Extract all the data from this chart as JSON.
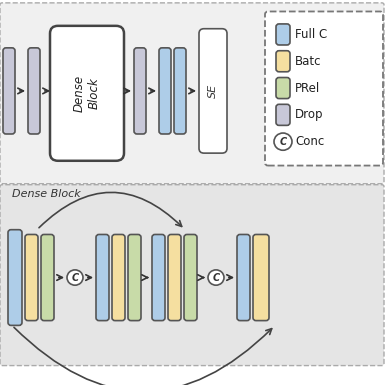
{
  "bg_color": "#ffffff",
  "top_bg": "#f5f5f5",
  "bottom_bg": "#e8e8e8",
  "colors": {
    "blue": "#aecde8",
    "yellow": "#f5dfa0",
    "green": "#c8dba8",
    "gray": "#c8c8d8",
    "white": "#ffffff"
  },
  "legend_items": [
    {
      "color": "#aecde8",
      "label": "Full C"
    },
    {
      "color": "#f5dfa0",
      "label": "Batc"
    },
    {
      "color": "#c8dba8",
      "label": "PRel"
    },
    {
      "color": "#c8c8d8",
      "label": "Drop"
    },
    {
      "circle": true,
      "label": "Conc"
    }
  ]
}
